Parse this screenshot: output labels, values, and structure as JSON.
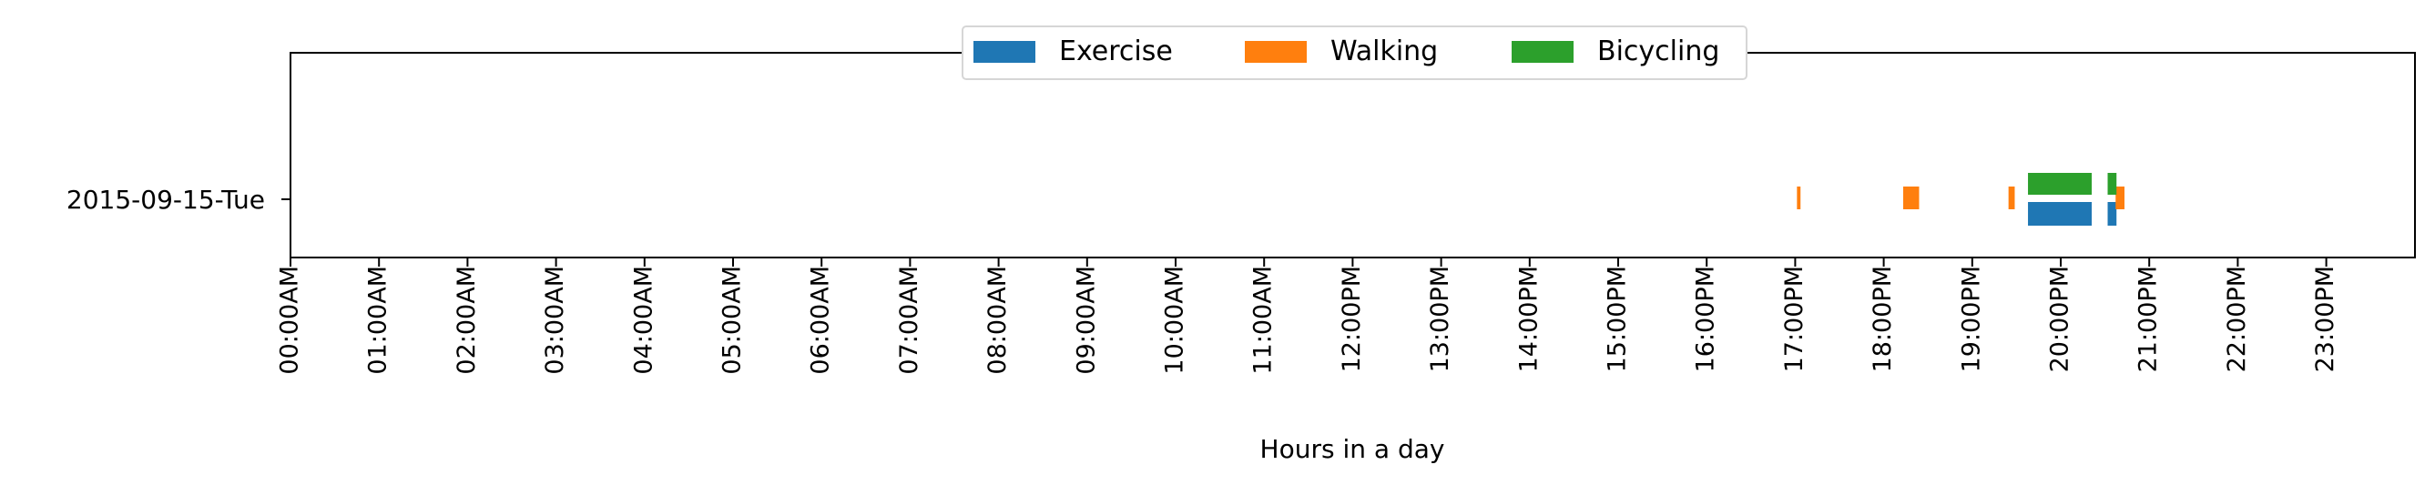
{
  "chart_data": {
    "type": "bar",
    "orientation": "horizontal",
    "title": "",
    "xlabel": "Hours in a day",
    "ylabel": "",
    "xlim": [
      0,
      24
    ],
    "categories": [
      "2015-09-15-Tue"
    ],
    "x_ticks": [
      "00:00AM",
      "01:00AM",
      "02:00AM",
      "03:00AM",
      "04:00AM",
      "05:00AM",
      "06:00AM",
      "07:00AM",
      "08:00AM",
      "09:00AM",
      "10:00AM",
      "11:00AM",
      "12:00PM",
      "13:00PM",
      "14:00PM",
      "15:00PM",
      "16:00PM",
      "17:00PM",
      "18:00PM",
      "19:00PM",
      "20:00PM",
      "21:00PM",
      "22:00PM",
      "23:00PM"
    ],
    "legend_position": "top-center",
    "grid": false,
    "series": [
      {
        "name": "Exercise",
        "color": "#1f77b4",
        "lane": "lower",
        "intervals": [
          {
            "start_hour": 19.63,
            "end_hour": 20.35
          },
          {
            "start_hour": 20.53,
            "end_hour": 20.63
          }
        ]
      },
      {
        "name": "Walking",
        "color": "#ff7f0e",
        "lane": "middle",
        "intervals": [
          {
            "start_hour": 17.02,
            "end_hour": 17.06
          },
          {
            "start_hour": 18.22,
            "end_hour": 18.4
          },
          {
            "start_hour": 19.41,
            "end_hour": 19.48
          },
          {
            "start_hour": 20.62,
            "end_hour": 20.72
          }
        ]
      },
      {
        "name": "Bicycling",
        "color": "#2ca02c",
        "lane": "upper",
        "intervals": [
          {
            "start_hour": 19.63,
            "end_hour": 20.35
          },
          {
            "start_hour": 20.53,
            "end_hour": 20.63
          }
        ]
      }
    ]
  }
}
